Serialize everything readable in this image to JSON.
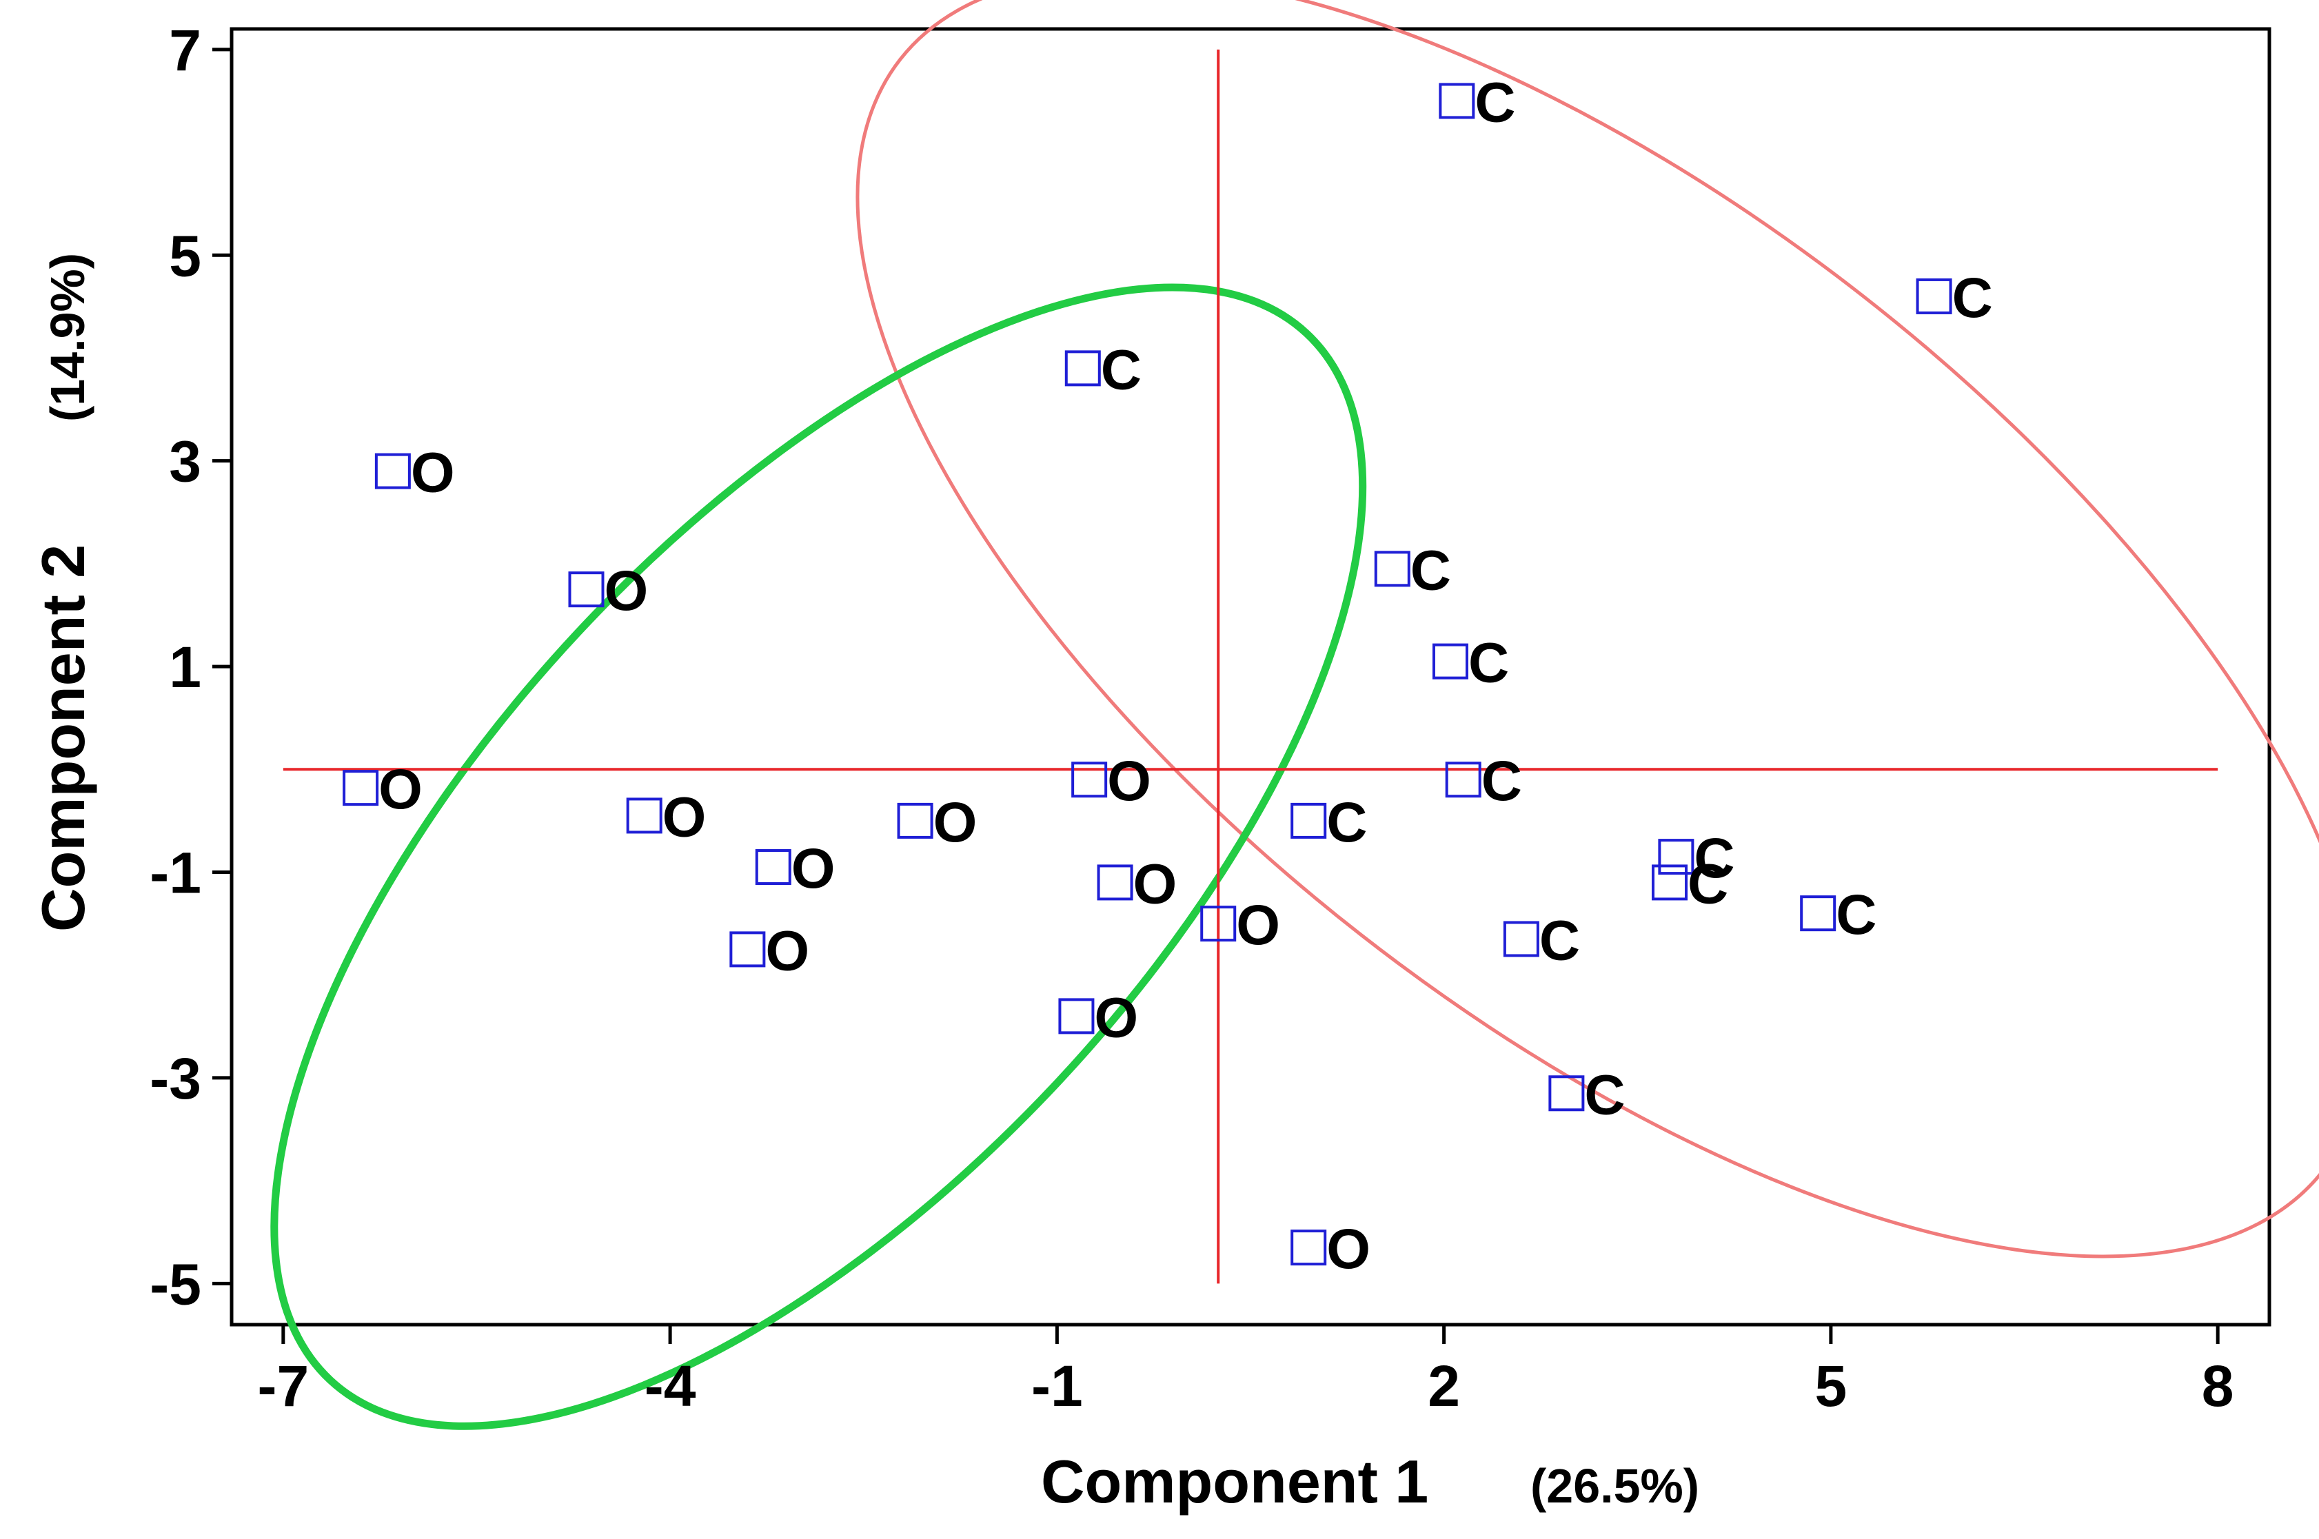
{
  "chart_data": {
    "type": "scatter",
    "title": "",
    "xlabel": "Component 1",
    "xlabel_pct": "(26.5%)",
    "ylabel": "Component 2",
    "ylabel_pct": "(14.9%)",
    "xlim": [
      -7.4,
      8.4
    ],
    "ylim": [
      -5.4,
      7.2
    ],
    "xticks": [
      -7,
      -4,
      -1,
      2,
      5,
      8
    ],
    "yticks": [
      -5,
      -3,
      -1,
      1,
      3,
      5,
      7
    ],
    "xtick_labels": [
      "-7",
      "-4",
      "-1",
      "2",
      "5",
      "8"
    ],
    "ytick_labels": [
      "-5",
      "-3",
      "-1",
      "1",
      "3",
      "5",
      "7"
    ],
    "grid": false,
    "legend": "none",
    "marker_color": "#1f1fd6",
    "reference_line_color": "#e8262a",
    "reference_lines": {
      "x": 0.25,
      "y": 0
    },
    "points": [
      {
        "label": "C",
        "x": 2.1,
        "y": 6.5
      },
      {
        "label": "C",
        "x": 5.8,
        "y": 4.6
      },
      {
        "label": "C",
        "x": -0.8,
        "y": 3.9
      },
      {
        "label": "C",
        "x": 1.6,
        "y": 1.95
      },
      {
        "label": "C",
        "x": 2.05,
        "y": 1.05
      },
      {
        "label": "C",
        "x": 2.15,
        "y": -0.1
      },
      {
        "label": "C",
        "x": 0.95,
        "y": -0.5
      },
      {
        "label": "C",
        "x": 3.8,
        "y": -0.85
      },
      {
        "label": "C",
        "x": 3.75,
        "y": -1.1
      },
      {
        "label": "C",
        "x": 4.9,
        "y": -1.4
      },
      {
        "label": "C",
        "x": 2.6,
        "y": -1.65
      },
      {
        "label": "C",
        "x": 2.95,
        "y": -3.15
      },
      {
        "label": "O",
        "x": -6.15,
        "y": 2.9
      },
      {
        "label": "O",
        "x": -4.65,
        "y": 1.75
      },
      {
        "label": "O",
        "x": -6.4,
        "y": -0.18
      },
      {
        "label": "O",
        "x": -4.2,
        "y": -0.45
      },
      {
        "label": "O",
        "x": -3.2,
        "y": -0.95
      },
      {
        "label": "O",
        "x": -2.1,
        "y": -0.5
      },
      {
        "label": "O",
        "x": -3.4,
        "y": -1.75
      },
      {
        "label": "O",
        "x": -0.75,
        "y": -0.1
      },
      {
        "label": "O",
        "x": -0.55,
        "y": -1.1
      },
      {
        "label": "O",
        "x": 0.25,
        "y": -1.5
      },
      {
        "label": "O",
        "x": -0.85,
        "y": -2.4
      },
      {
        "label": "O",
        "x": 0.95,
        "y": -4.65
      }
    ],
    "ellipses": [
      {
        "group": "C",
        "color": "#f07b7b",
        "cx": 3.3,
        "cy": 1.5,
        "rx": 7.0,
        "ry": 3.15,
        "angle_deg": 38
      },
      {
        "group": "O",
        "color": "#22cc44",
        "cx": -2.85,
        "cy": -0.85,
        "rx": 5.55,
        "ry": 2.55,
        "angle_deg": -47
      }
    ]
  }
}
